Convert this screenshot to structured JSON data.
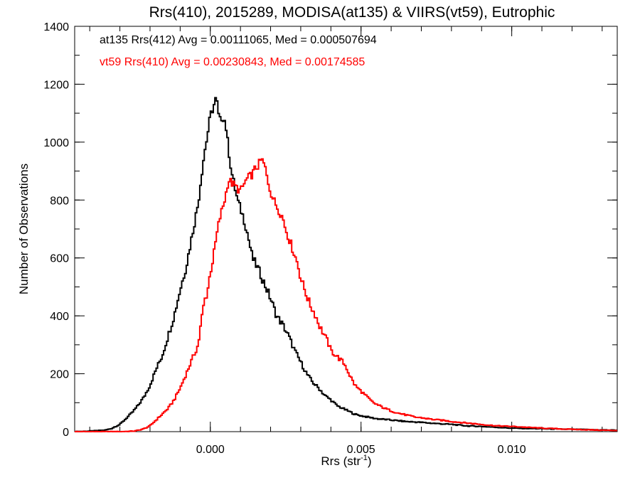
{
  "chart_data": {
    "type": "step-histogram",
    "title": "Rrs(410), 2015289, MODISA(at135) & VIIRS(vt59), Eutrophic",
    "xlabel": "Rrs (str",
    "xlabel_sup": "-1",
    "xlabel_end": ")",
    "ylabel": "Number of Observations",
    "xlim": [
      -0.0045,
      0.0135
    ],
    "ylim": [
      0,
      1400
    ],
    "x_ticks": [
      {
        "value": 0.0,
        "label": "0.000"
      },
      {
        "value": 0.005,
        "label": "0.005"
      },
      {
        "value": 0.01,
        "label": "0.010"
      }
    ],
    "y_ticks": [
      {
        "value": 0,
        "label": "0"
      },
      {
        "value": 200,
        "label": "200"
      },
      {
        "value": 400,
        "label": "400"
      },
      {
        "value": 600,
        "label": "600"
      },
      {
        "value": 800,
        "label": "800"
      },
      {
        "value": 1000,
        "label": "1000"
      },
      {
        "value": 1200,
        "label": "1200"
      },
      {
        "value": 1400,
        "label": "1400"
      }
    ],
    "x_minor_step": 0.001,
    "y_minor_step": 100,
    "annotations": [
      {
        "text": "at135 Rrs(412) Avg = 0.00111065, Med = 0.000507694",
        "color": "#000000"
      },
      {
        "text": "vt59 Rrs(410) Avg = 0.00230843, Med = 0.00174585",
        "color": "#ff0000"
      }
    ],
    "series": [
      {
        "color": "#000000",
        "points": [
          [
            -0.0045,
            0
          ],
          [
            -0.004,
            2
          ],
          [
            -0.0035,
            5
          ],
          [
            -0.0033,
            10
          ],
          [
            -0.003,
            25
          ],
          [
            -0.0028,
            45
          ],
          [
            -0.0026,
            65
          ],
          [
            -0.0024,
            90
          ],
          [
            -0.0022,
            120
          ],
          [
            -0.002,
            160
          ],
          [
            -0.0018,
            215
          ],
          [
            -0.0016,
            260
          ],
          [
            -0.0014,
            330
          ],
          [
            -0.0012,
            400
          ],
          [
            -0.001,
            490
          ],
          [
            -0.0008,
            570
          ],
          [
            -0.0006,
            680
          ],
          [
            -0.0004,
            790
          ],
          [
            -0.0003,
            880
          ],
          [
            -0.0002,
            960
          ],
          [
            -0.0001,
            1020
          ],
          [
            0.0,
            1090
          ],
          [
            0.0001,
            1120
          ],
          [
            0.0002,
            1155
          ],
          [
            0.0003,
            1070
          ],
          [
            0.0004,
            1090
          ],
          [
            0.0005,
            1070
          ],
          [
            0.0006,
            980
          ],
          [
            0.0007,
            900
          ],
          [
            0.0008,
            850
          ],
          [
            0.0009,
            800
          ],
          [
            0.001,
            770
          ],
          [
            0.0011,
            740
          ],
          [
            0.0012,
            700
          ],
          [
            0.0013,
            650
          ],
          [
            0.0014,
            600
          ],
          [
            0.0016,
            560
          ],
          [
            0.0018,
            510
          ],
          [
            0.002,
            460
          ],
          [
            0.0022,
            400
          ],
          [
            0.0024,
            370
          ],
          [
            0.0026,
            330
          ],
          [
            0.0028,
            280
          ],
          [
            0.003,
            240
          ],
          [
            0.0032,
            200
          ],
          [
            0.0034,
            170
          ],
          [
            0.0036,
            150
          ],
          [
            0.0038,
            125
          ],
          [
            0.004,
            110
          ],
          [
            0.0042,
            90
          ],
          [
            0.0044,
            80
          ],
          [
            0.0046,
            70
          ],
          [
            0.0048,
            60
          ],
          [
            0.005,
            55
          ],
          [
            0.0055,
            45
          ],
          [
            0.006,
            40
          ],
          [
            0.0065,
            35
          ],
          [
            0.007,
            32
          ],
          [
            0.0075,
            28
          ],
          [
            0.008,
            25
          ],
          [
            0.0085,
            20
          ],
          [
            0.009,
            18
          ],
          [
            0.0095,
            15
          ],
          [
            0.01,
            12
          ],
          [
            0.011,
            10
          ],
          [
            0.012,
            8
          ],
          [
            0.013,
            6
          ],
          [
            0.0135,
            5
          ]
        ]
      },
      {
        "color": "#ff0000",
        "points": [
          [
            -0.0045,
            0
          ],
          [
            -0.003,
            0
          ],
          [
            -0.0025,
            2
          ],
          [
            -0.0022,
            10
          ],
          [
            -0.002,
            20
          ],
          [
            -0.0018,
            40
          ],
          [
            -0.0016,
            60
          ],
          [
            -0.0014,
            80
          ],
          [
            -0.0012,
            110
          ],
          [
            -0.001,
            150
          ],
          [
            -0.0008,
            200
          ],
          [
            -0.0006,
            250
          ],
          [
            -0.0004,
            300
          ],
          [
            -0.0003,
            380
          ],
          [
            -0.0002,
            450
          ],
          [
            -0.0001,
            480
          ],
          [
            0.0,
            550
          ],
          [
            0.0001,
            600
          ],
          [
            0.0002,
            670
          ],
          [
            0.0003,
            730
          ],
          [
            0.0004,
            770
          ],
          [
            0.0005,
            810
          ],
          [
            0.0006,
            870
          ],
          [
            0.0007,
            860
          ],
          [
            0.0008,
            850
          ],
          [
            0.0009,
            840
          ],
          [
            0.001,
            830
          ],
          [
            0.0011,
            850
          ],
          [
            0.0012,
            870
          ],
          [
            0.0013,
            880
          ],
          [
            0.0014,
            890
          ],
          [
            0.0015,
            910
          ],
          [
            0.0016,
            920
          ],
          [
            0.0017,
            940
          ],
          [
            0.0018,
            920
          ],
          [
            0.0019,
            870
          ],
          [
            0.002,
            830
          ],
          [
            0.0021,
            800
          ],
          [
            0.0022,
            780
          ],
          [
            0.0023,
            760
          ],
          [
            0.0024,
            740
          ],
          [
            0.0025,
            700
          ],
          [
            0.0026,
            670
          ],
          [
            0.0027,
            640
          ],
          [
            0.0028,
            610
          ],
          [
            0.0029,
            580
          ],
          [
            0.003,
            530
          ],
          [
            0.0031,
            500
          ],
          [
            0.0032,
            470
          ],
          [
            0.0033,
            440
          ],
          [
            0.0034,
            420
          ],
          [
            0.0035,
            400
          ],
          [
            0.0036,
            370
          ],
          [
            0.0037,
            350
          ],
          [
            0.0038,
            330
          ],
          [
            0.0039,
            310
          ],
          [
            0.004,
            280
          ],
          [
            0.0041,
            270
          ],
          [
            0.0042,
            260
          ],
          [
            0.0043,
            250
          ],
          [
            0.0044,
            240
          ],
          [
            0.0045,
            225
          ],
          [
            0.0046,
            200
          ],
          [
            0.0047,
            180
          ],
          [
            0.0048,
            160
          ],
          [
            0.005,
            140
          ],
          [
            0.0052,
            120
          ],
          [
            0.0054,
            100
          ],
          [
            0.0056,
            90
          ],
          [
            0.0058,
            80
          ],
          [
            0.006,
            72
          ],
          [
            0.0062,
            65
          ],
          [
            0.0064,
            60
          ],
          [
            0.0066,
            55
          ],
          [
            0.0068,
            50
          ],
          [
            0.007,
            48
          ],
          [
            0.0072,
            45
          ],
          [
            0.0074,
            42
          ],
          [
            0.0076,
            40
          ],
          [
            0.0078,
            38
          ],
          [
            0.008,
            35
          ],
          [
            0.0085,
            30
          ],
          [
            0.009,
            25
          ],
          [
            0.0095,
            20
          ],
          [
            0.01,
            18
          ],
          [
            0.011,
            12
          ],
          [
            0.012,
            8
          ],
          [
            0.013,
            5
          ],
          [
            0.0135,
            4
          ]
        ]
      }
    ]
  }
}
